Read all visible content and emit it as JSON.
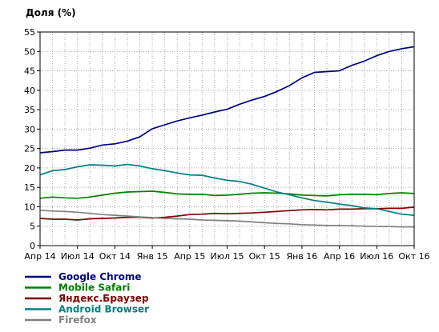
{
  "chart_data": {
    "type": "line",
    "title": "",
    "xlabel": "",
    "ylabel": "Доля (%)",
    "ylim": [
      0,
      55
    ],
    "yticks": [
      0,
      5,
      10,
      15,
      20,
      25,
      30,
      35,
      40,
      45,
      50,
      55
    ],
    "xticks": [
      "Апр 14",
      "Июл 14",
      "Окт 14",
      "Янв 15",
      "Апр 15",
      "Июл 15",
      "Окт 15",
      "Янв 16",
      "Апр 16",
      "Июл 16",
      "Окт 16"
    ],
    "grid": true,
    "legend_position": "bottom-left",
    "x": [
      "2014-04",
      "2014-05",
      "2014-06",
      "2014-07",
      "2014-08",
      "2014-09",
      "2014-10",
      "2014-11",
      "2014-12",
      "2015-01",
      "2015-02",
      "2015-03",
      "2015-04",
      "2015-05",
      "2015-06",
      "2015-07",
      "2015-08",
      "2015-09",
      "2015-10",
      "2015-11",
      "2015-12",
      "2016-01",
      "2016-02",
      "2016-03",
      "2016-04",
      "2016-05",
      "2016-06",
      "2016-07",
      "2016-08",
      "2016-09",
      "2016-10"
    ],
    "series": [
      {
        "name": "Google Chrome",
        "color": "#000080",
        "values": [
          23.9,
          24.2,
          24.6,
          24.6,
          25.1,
          25.9,
          26.2,
          26.9,
          28.0,
          30.1,
          31.1,
          32.1,
          32.9,
          33.6,
          34.4,
          35.1,
          36.4,
          37.5,
          38.4,
          39.7,
          41.2,
          43.2,
          44.6,
          44.8,
          45.0,
          46.4,
          47.5,
          48.9,
          50.0,
          50.7,
          51.2
        ]
      },
      {
        "name": "Mobile Safari",
        "color": "#008000",
        "values": [
          12.2,
          12.5,
          12.3,
          12.2,
          12.5,
          13.0,
          13.5,
          13.8,
          13.9,
          14.0,
          13.7,
          13.3,
          13.2,
          13.2,
          12.9,
          13.0,
          13.2,
          13.5,
          13.6,
          13.5,
          13.3,
          13.0,
          12.9,
          12.8,
          13.1,
          13.2,
          13.2,
          13.1,
          13.4,
          13.6,
          13.4
        ]
      },
      {
        "name": "Яндекс.Браузер",
        "color": "#800000",
        "values": [
          7.0,
          6.8,
          6.8,
          6.6,
          6.9,
          7.0,
          7.1,
          7.3,
          7.3,
          7.1,
          7.3,
          7.6,
          8.0,
          8.1,
          8.3,
          8.2,
          8.3,
          8.4,
          8.6,
          8.8,
          9.0,
          9.2,
          9.3,
          9.2,
          9.4,
          9.4,
          9.5,
          9.5,
          9.6,
          9.6,
          9.9
        ]
      },
      {
        "name": "Android Browser",
        "color": "#008080",
        "values": [
          18.2,
          19.3,
          19.6,
          20.3,
          20.8,
          20.7,
          20.5,
          20.9,
          20.5,
          19.8,
          19.3,
          18.7,
          18.2,
          18.1,
          17.4,
          16.8,
          16.5,
          15.8,
          14.8,
          13.8,
          13.1,
          12.3,
          11.6,
          11.2,
          10.7,
          10.3,
          9.7,
          9.5,
          8.8,
          8.1,
          7.8
        ]
      },
      {
        "name": "Firefox",
        "color": "#808080",
        "values": [
          9.1,
          8.9,
          8.8,
          8.6,
          8.3,
          8.0,
          7.8,
          7.6,
          7.4,
          7.2,
          7.0,
          6.9,
          6.8,
          6.6,
          6.5,
          6.4,
          6.3,
          6.1,
          5.9,
          5.7,
          5.6,
          5.4,
          5.3,
          5.2,
          5.2,
          5.1,
          5.0,
          4.9,
          4.9,
          4.8,
          4.8
        ]
      }
    ]
  }
}
